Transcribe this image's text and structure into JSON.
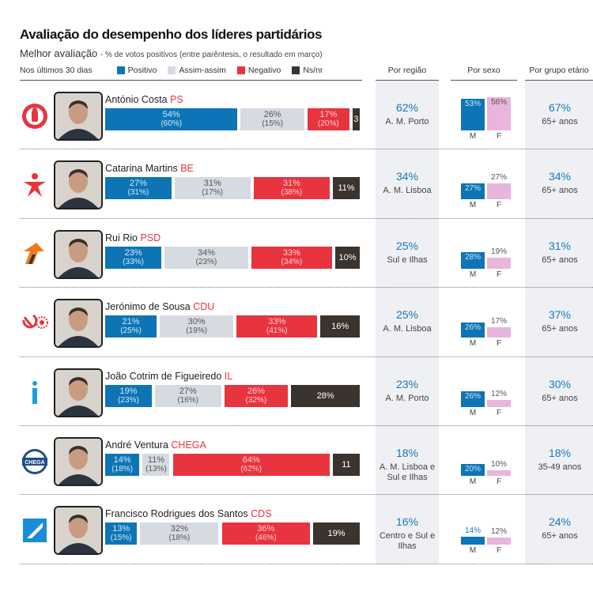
{
  "header": {
    "title": "Avaliação do desempenho dos líderes partidários",
    "subtitle": "Melhor avaliação",
    "subtitle_note": "- % de votos positivos (entre parêntesis, o resultado em março)"
  },
  "legend": {
    "period": "Nos últimos 30 dias",
    "items": [
      {
        "label": "Positivo",
        "color": "#0d75b6"
      },
      {
        "label": "Assim-assim",
        "color": "#d6dbe2"
      },
      {
        "label": "Negativo",
        "color": "#e8343f"
      },
      {
        "label": "Ns/nr",
        "color": "#3a332e"
      }
    ]
  },
  "columns": {
    "region": "Por região",
    "sex": "Por sexo",
    "age": "Por grupo etário"
  },
  "chart_data": {
    "type": "bar",
    "stacked": true,
    "categories": [
      "Positivo",
      "Assim-assim",
      "Negativo",
      "Ns/nr"
    ],
    "leaders": [
      {
        "name": "António Costa",
        "party": "PS",
        "logo": "ps-fist-rose-icon",
        "values": [
          54,
          26,
          17,
          3
        ],
        "march": [
          "(60%)",
          "(15%)",
          "(20%)",
          ""
        ],
        "labels": [
          "54%",
          "26%",
          "17%",
          "3"
        ],
        "region": {
          "pct": "62%",
          "label": "A. M. Porto"
        },
        "sex": {
          "m": 53,
          "f": 56,
          "m_label": "53%",
          "f_label": "56%"
        },
        "age": {
          "pct": "67%",
          "label": "65+ anos"
        }
      },
      {
        "name": "Catarina Martins",
        "party": "BE",
        "logo": "be-star-figure-icon",
        "values": [
          27,
          31,
          31,
          11
        ],
        "march": [
          "(31%)",
          "(17%)",
          "(38%)",
          ""
        ],
        "labels": [
          "27%",
          "31%",
          "31%",
          "11%"
        ],
        "region": {
          "pct": "34%",
          "label": "A. M. Lisboa"
        },
        "sex": {
          "m": 27,
          "f": 27,
          "m_label": "27%",
          "f_label": "27%"
        },
        "age": {
          "pct": "34%",
          "label": "65+ anos"
        }
      },
      {
        "name": "Rui Rio",
        "party": "PSD",
        "logo": "psd-arrow-icon",
        "values": [
          23,
          34,
          33,
          10
        ],
        "march": [
          "(33%)",
          "(23%)",
          "(34%)",
          ""
        ],
        "labels": [
          "23%",
          "34%",
          "33%",
          "10%"
        ],
        "region": {
          "pct": "25%",
          "label": "Sul e Ilhas"
        },
        "sex": {
          "m": 28,
          "f": 19,
          "m_label": "28%",
          "f_label": "19%"
        },
        "age": {
          "pct": "31%",
          "label": "65+ anos"
        }
      },
      {
        "name": "Jerónimo de Sousa",
        "party": "CDU",
        "logo": "cdu-hammer-sickle-icon",
        "values": [
          21,
          30,
          33,
          16
        ],
        "march": [
          "(25%)",
          "(19%)",
          "(41%)",
          ""
        ],
        "labels": [
          "21%",
          "30%",
          "33%",
          "16%"
        ],
        "region": {
          "pct": "25%",
          "label": "A. M. Lisboa"
        },
        "sex": {
          "m": 26,
          "f": 17,
          "m_label": "26%",
          "f_label": "17%"
        },
        "age": {
          "pct": "37%",
          "label": "65+ anos"
        }
      },
      {
        "name": "João Cotrim de Figueiredo",
        "party": "IL",
        "logo": "il-i-icon",
        "values": [
          19,
          27,
          26,
          28
        ],
        "march": [
          "(23%)",
          "(16%)",
          "(32%)",
          ""
        ],
        "labels": [
          "19%",
          "27%",
          "26%",
          "28%"
        ],
        "region": {
          "pct": "23%",
          "label": "A. M. Porto"
        },
        "sex": {
          "m": 26,
          "f": 12,
          "m_label": "26%",
          "f_label": "12%"
        },
        "age": {
          "pct": "30%",
          "label": "65+ anos"
        }
      },
      {
        "name": "André Ventura",
        "party": "CHEGA",
        "logo": "chega-logo-icon",
        "logo_text": "CHEGA",
        "values": [
          14,
          11,
          64,
          11
        ],
        "march": [
          "(18%)",
          "(13%)",
          "(62%)",
          ""
        ],
        "labels": [
          "14%",
          "11%",
          "64%",
          "11"
        ],
        "region": {
          "pct": "18%",
          "label": "A. M. Lisboa e Sul e Ilhas"
        },
        "sex": {
          "m": 20,
          "f": 10,
          "m_label": "20%",
          "f_label": "10%"
        },
        "age": {
          "pct": "18%",
          "label": "35-49 anos"
        }
      },
      {
        "name": "Francisco Rodrigues dos Santos",
        "party": "CDS",
        "logo": "cds-square-icon",
        "values": [
          13,
          32,
          36,
          19
        ],
        "march": [
          "(15%)",
          "(18%)",
          "(46%)",
          ""
        ],
        "labels": [
          "13%",
          "32%",
          "36%",
          "19%"
        ],
        "region": {
          "pct": "16%",
          "label": "Centro e Sul e Ilhas"
        },
        "sex": {
          "m": 14,
          "f": 12,
          "m_label": "14%",
          "f_label": "12%"
        },
        "age": {
          "pct": "24%",
          "label": "65+ anos"
        }
      }
    ],
    "sex_labels": {
      "m": "M",
      "f": "F"
    }
  }
}
